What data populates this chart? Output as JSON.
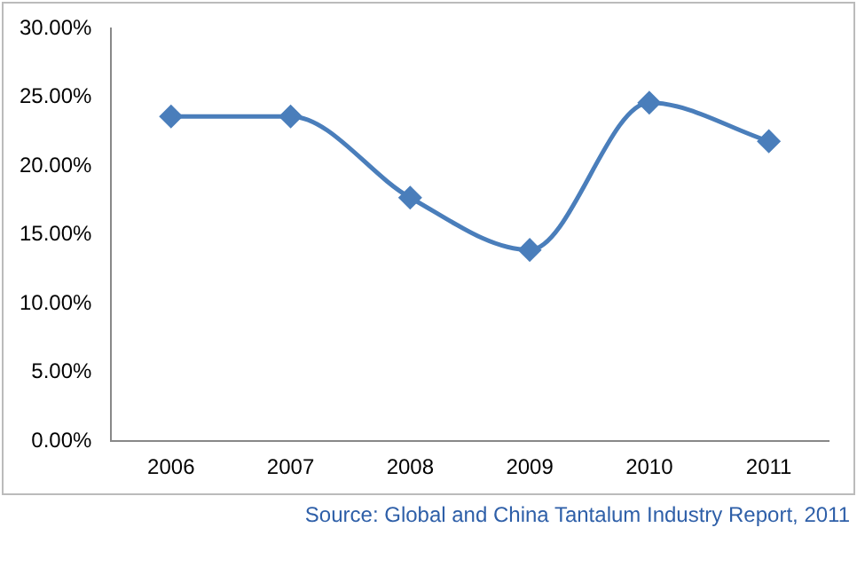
{
  "chart_data": {
    "type": "line",
    "categories": [
      "2006",
      "2007",
      "2008",
      "2009",
      "2010",
      "2011"
    ],
    "series": [
      {
        "color": "#4a7ebb",
        "values": [
          23.6,
          23.6,
          17.7,
          13.9,
          24.6,
          21.8
        ]
      }
    ],
    "ylim": [
      0,
      30
    ],
    "yticks": [
      {
        "value": 0,
        "label": "0.00%"
      },
      {
        "value": 5,
        "label": "5.00%"
      },
      {
        "value": 10,
        "label": "10.00%"
      },
      {
        "value": 15,
        "label": "15.00%"
      },
      {
        "value": 20,
        "label": "20.00%"
      },
      {
        "value": 25,
        "label": "25.00%"
      },
      {
        "value": 30,
        "label": "30.00%"
      }
    ],
    "grid": false,
    "legend": false,
    "marker": "diamond",
    "line_style": "solid",
    "annotations": [
      "Source: Global and China Tantalum Industry Report, 2011"
    ]
  }
}
